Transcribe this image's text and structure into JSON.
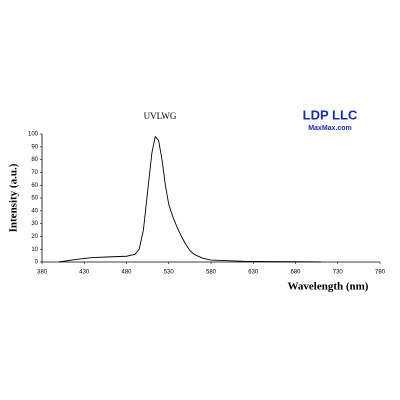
{
  "chart_data": {
    "type": "line",
    "title": "UVLWG",
    "annotations": [
      "LDP LLC",
      "MaxMax.com"
    ],
    "x_label": "Wavelength (nm)",
    "y_label": "Intensity (a.u.)",
    "series": [
      {
        "name": "UVLWG",
        "color": "#000000",
        "x": [
          400,
          420,
          440,
          460,
          480,
          490,
          495,
          500,
          505,
          510,
          514,
          518,
          522,
          526,
          530,
          535,
          540,
          545,
          550,
          555,
          560,
          570,
          580,
          600,
          620,
          650,
          680,
          710
        ],
        "values": [
          0,
          2,
          3.5,
          4,
          4.5,
          6,
          10,
          25,
          55,
          85,
          98,
          95,
          80,
          60,
          45,
          35,
          27,
          20,
          14,
          9,
          6,
          3,
          1.5,
          1,
          0.5,
          0.3,
          0.2,
          0
        ]
      }
    ],
    "xlim": [
      380,
      780
    ],
    "xticks": [
      380,
      430,
      480,
      530,
      580,
      630,
      680,
      730,
      780
    ],
    "ylim": [
      0,
      100
    ],
    "yticks": [
      0,
      10,
      20,
      30,
      40,
      50,
      60,
      70,
      80,
      90,
      100
    ]
  }
}
